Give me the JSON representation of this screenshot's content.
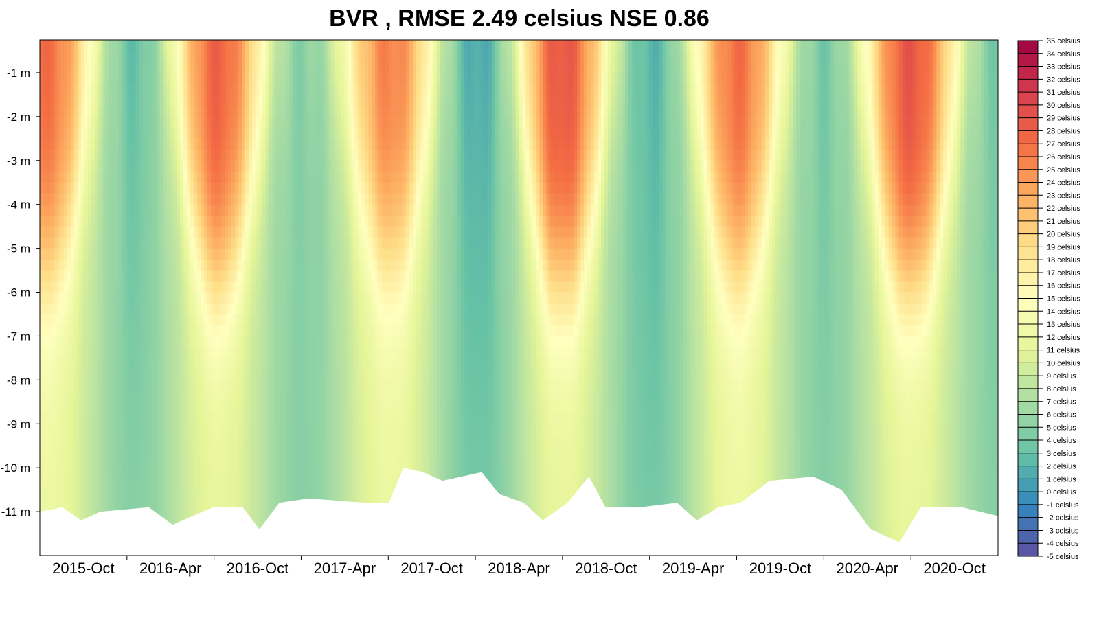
{
  "chart_data": {
    "type": "heatmap",
    "title": "BVR , RMSE 2.49 celsius NSE 0.86",
    "xlabel": "",
    "ylabel": "",
    "y_ticks": [
      "-1 m",
      "-2 m",
      "-3 m",
      "-4 m",
      "-5 m",
      "-6 m",
      "-7 m",
      "-8 m",
      "-9 m",
      "-10 m",
      "-11 m"
    ],
    "y_tick_values": [
      -1,
      -2,
      -3,
      -4,
      -5,
      -6,
      -7,
      -8,
      -9,
      -10,
      -11
    ],
    "ylim": [
      -12,
      -0.25
    ],
    "x_ticks": [
      "2015-Oct",
      "2016-Apr",
      "2016-Oct",
      "2017-Apr",
      "2017-Oct",
      "2018-Apr",
      "2018-Oct",
      "2019-Apr",
      "2019-Oct",
      "2020-Apr",
      "2020-Oct"
    ],
    "xlim": [
      "2015-07-15",
      "2021-01-25"
    ],
    "colorbar": {
      "labels": [
        "35 celsius",
        "34 celsius",
        "33 celsius",
        "32 celsius",
        "31 celsius",
        "30 celsius",
        "29 celsius",
        "28 celsius",
        "27 celsius",
        "26 celsius",
        "25 celsius",
        "24 celsius",
        "23 celsius",
        "22 celsius",
        "21 celsius",
        "20 celsius",
        "19 celsius",
        "18 celsius",
        "17 celsius",
        "16 celsius",
        "15 celsius",
        "14 celsius",
        "13 celsius",
        "12 celsius",
        "11 celsius",
        "10 celsius",
        "9 celsius",
        "8 celsius",
        "7 celsius",
        "6 celsius",
        "5 celsius",
        "4 celsius",
        "3 celsius",
        "2 celsius",
        "1 celsius",
        "0 celsius",
        "-1 celsius",
        "-2 celsius",
        "-3 celsius",
        "-4 celsius",
        "-5 celsius"
      ],
      "range": [
        -5,
        35
      ],
      "palette": [
        "#5e4fa2",
        "#3288bd",
        "#66c2a5",
        "#abdda4",
        "#e6f598",
        "#ffffbf",
        "#fee08b",
        "#fdae61",
        "#f46d43",
        "#d53e4f",
        "#9e0142"
      ]
    },
    "annual_cycle": [
      {
        "date": "2015-08-01",
        "surface_c": 27,
        "bottom_c": 10
      },
      {
        "date": "2016-02-01",
        "surface_c": 3,
        "bottom_c": 5
      },
      {
        "date": "2016-07-25",
        "surface_c": 28,
        "bottom_c": 9
      },
      {
        "date": "2017-01-20",
        "surface_c": 5,
        "bottom_c": 5
      },
      {
        "date": "2017-07-25",
        "surface_c": 26,
        "bottom_c": 10
      },
      {
        "date": "2018-01-25",
        "surface_c": 1,
        "bottom_c": 4
      },
      {
        "date": "2018-07-20",
        "surface_c": 29,
        "bottom_c": 9
      },
      {
        "date": "2019-01-25",
        "surface_c": 2,
        "bottom_c": 4
      },
      {
        "date": "2019-07-25",
        "surface_c": 27,
        "bottom_c": 10
      },
      {
        "date": "2020-01-25",
        "surface_c": 4,
        "bottom_c": 5
      },
      {
        "date": "2020-07-25",
        "surface_c": 29,
        "bottom_c": 9
      },
      {
        "date": "2021-01-25",
        "surface_c": 4,
        "bottom_c": 5
      }
    ],
    "bottom_depth": [
      {
        "date": "2015-07-15",
        "depth": -11.0
      },
      {
        "date": "2015-09-01",
        "depth": -10.9
      },
      {
        "date": "2015-10-10",
        "depth": -11.2
      },
      {
        "date": "2015-11-20",
        "depth": -11.0
      },
      {
        "date": "2016-03-01",
        "depth": -10.9
      },
      {
        "date": "2016-04-20",
        "depth": -11.3
      },
      {
        "date": "2016-06-01",
        "depth": -11.1
      },
      {
        "date": "2016-07-15",
        "depth": -10.9
      },
      {
        "date": "2016-09-15",
        "depth": -10.9
      },
      {
        "date": "2016-10-20",
        "depth": -11.4
      },
      {
        "date": "2016-12-01",
        "depth": -10.8
      },
      {
        "date": "2017-02-01",
        "depth": -10.7
      },
      {
        "date": "2017-06-01",
        "depth": -10.8
      },
      {
        "date": "2017-07-20",
        "depth": -10.8
      },
      {
        "date": "2017-08-20",
        "depth": -10.0
      },
      {
        "date": "2017-10-01",
        "depth": -10.1
      },
      {
        "date": "2017-11-10",
        "depth": -10.3
      },
      {
        "date": "2018-02-01",
        "depth": -10.1
      },
      {
        "date": "2018-03-10",
        "depth": -10.6
      },
      {
        "date": "2018-05-01",
        "depth": -10.8
      },
      {
        "date": "2018-06-10",
        "depth": -11.2
      },
      {
        "date": "2018-08-01",
        "depth": -10.8
      },
      {
        "date": "2018-09-15",
        "depth": -10.2
      },
      {
        "date": "2018-10-20",
        "depth": -10.9
      },
      {
        "date": "2019-01-01",
        "depth": -10.9
      },
      {
        "date": "2019-03-20",
        "depth": -10.8
      },
      {
        "date": "2019-05-01",
        "depth": -11.2
      },
      {
        "date": "2019-06-15",
        "depth": -10.9
      },
      {
        "date": "2019-08-01",
        "depth": -10.8
      },
      {
        "date": "2019-10-01",
        "depth": -10.3
      },
      {
        "date": "2020-01-01",
        "depth": -10.2
      },
      {
        "date": "2020-03-01",
        "depth": -10.5
      },
      {
        "date": "2020-05-01",
        "depth": -11.4
      },
      {
        "date": "2020-07-01",
        "depth": -11.7
      },
      {
        "date": "2020-08-15",
        "depth": -10.9
      },
      {
        "date": "2020-11-10",
        "depth": -10.9
      },
      {
        "date": "2021-01-25",
        "depth": -11.1
      }
    ]
  }
}
